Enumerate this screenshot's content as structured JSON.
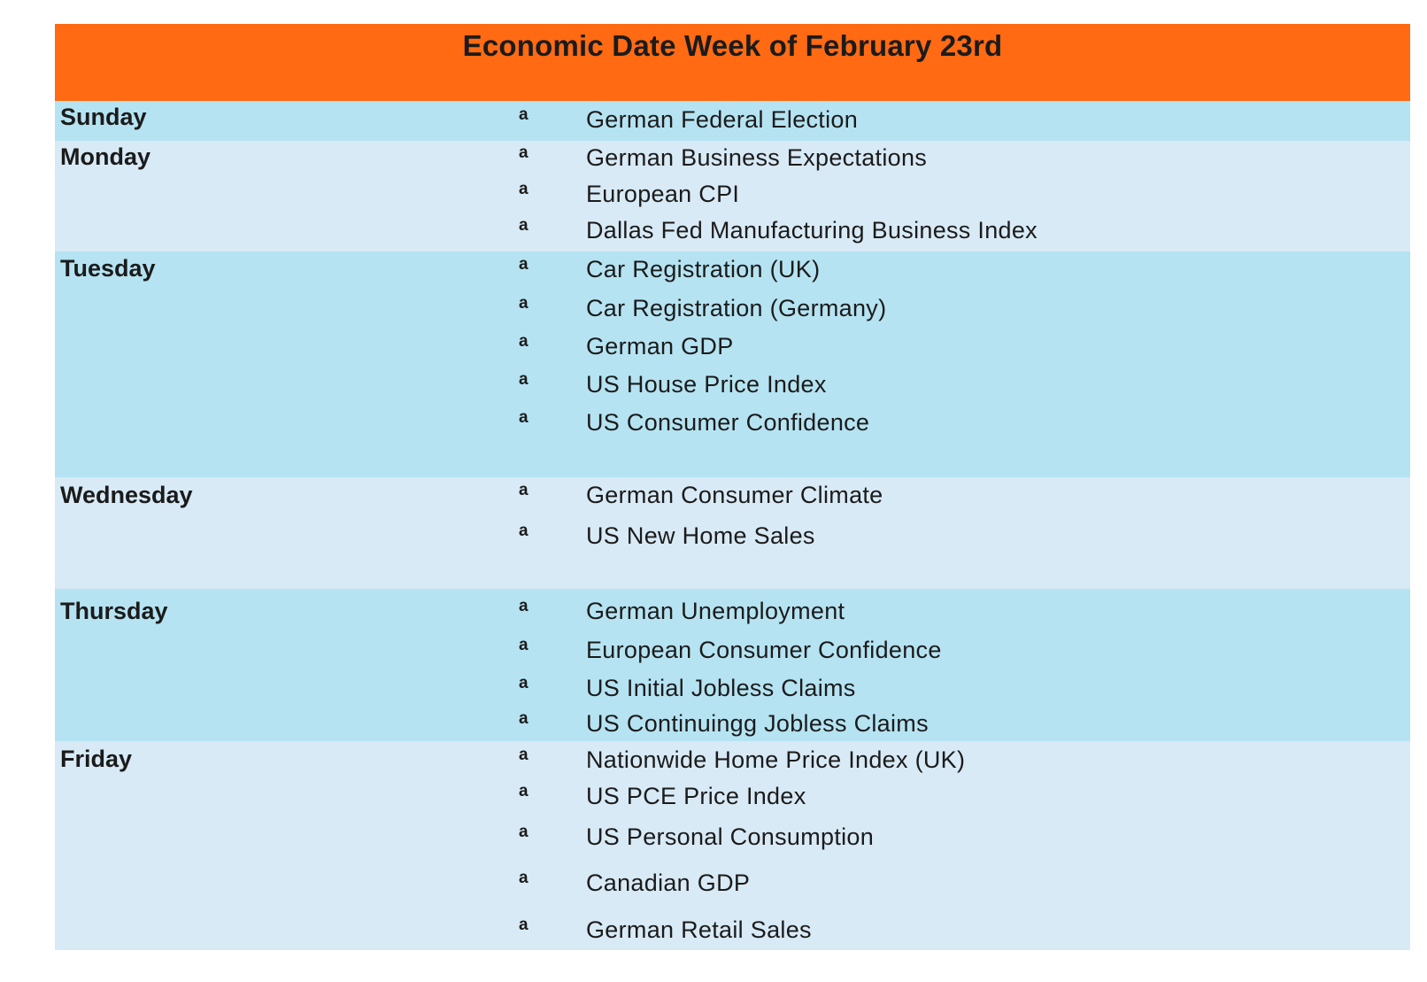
{
  "title": "Economic Date Week  of February 23rd",
  "bullet_glyph": "a",
  "colors": {
    "header": "#ff6a13",
    "band_a": "#b5e3f2",
    "band_b": "#d8eaf6"
  },
  "days": [
    {
      "name": "Sunday",
      "events": [
        "German Federal Election"
      ]
    },
    {
      "name": "Monday",
      "events": [
        "German Business Expectations",
        "European CPI",
        "Dallas Fed Manufacturing Business Index"
      ]
    },
    {
      "name": "Tuesday",
      "events": [
        "Car Registration (UK)",
        "Car Registration (Germany)",
        "German GDP",
        "US House Price Index",
        "US Consumer Confidence"
      ]
    },
    {
      "name": "Wednesday",
      "events": [
        "German Consumer Climate",
        "US New Home Sales"
      ]
    },
    {
      "name": "Thursday",
      "events": [
        "German Unemployment",
        "European Consumer Confidence",
        "US Initial Jobless Claims",
        "US Continuingg Jobless Claims"
      ]
    },
    {
      "name": "Friday",
      "events": [
        "Nationwide Home Price Index (UK)",
        "US PCE Price Index",
        "US Personal Consumption",
        "Canadian GDP",
        "German Retail Sales"
      ]
    }
  ]
}
